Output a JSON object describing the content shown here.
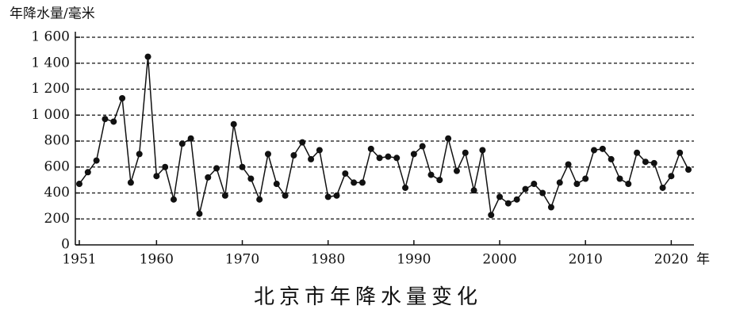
{
  "chart_data": {
    "type": "line",
    "title": "北京市年降水量变化",
    "y_label": "年降水量/毫米",
    "x_label": "年",
    "x": [
      1951,
      1952,
      1953,
      1954,
      1955,
      1956,
      1957,
      1958,
      1959,
      1960,
      1961,
      1962,
      1963,
      1964,
      1965,
      1966,
      1967,
      1968,
      1969,
      1970,
      1971,
      1972,
      1973,
      1974,
      1975,
      1976,
      1977,
      1978,
      1979,
      1980,
      1981,
      1982,
      1983,
      1984,
      1985,
      1986,
      1987,
      1988,
      1989,
      1990,
      1991,
      1992,
      1993,
      1994,
      1995,
      1996,
      1997,
      1998,
      1999,
      2000,
      2001,
      2002,
      2003,
      2004,
      2005,
      2006,
      2007,
      2008,
      2009,
      2010,
      2011,
      2012,
      2013,
      2014,
      2015,
      2016,
      2017,
      2018,
      2019,
      2020,
      2021,
      2022
    ],
    "values": [
      470,
      560,
      650,
      970,
      950,
      1130,
      480,
      700,
      1450,
      530,
      600,
      350,
      780,
      820,
      240,
      520,
      590,
      380,
      930,
      600,
      510,
      350,
      700,
      470,
      380,
      690,
      790,
      660,
      730,
      370,
      380,
      550,
      480,
      480,
      740,
      670,
      680,
      670,
      440,
      700,
      760,
      540,
      500,
      820,
      570,
      710,
      420,
      730,
      230,
      370,
      320,
      350,
      430,
      470,
      400,
      290,
      480,
      620,
      470,
      510,
      730,
      740,
      660,
      510,
      470,
      710,
      640,
      630,
      440,
      530,
      710,
      580
    ],
    "color": "#111111",
    "xlim": [
      1951,
      2022
    ],
    "xticks": [
      1951,
      1960,
      1970,
      1980,
      1990,
      2000,
      2010,
      2020
    ],
    "ylim": [
      0,
      1600
    ],
    "yticks": [
      0,
      200,
      400,
      600,
      800,
      {
        "value": 1000,
        "label": "1 000"
      },
      {
        "value": 1200,
        "label": "1 200"
      },
      {
        "value": 1400,
        "label": "1 400"
      },
      {
        "value": 1600,
        "label": "1 600"
      }
    ],
    "grid": true
  }
}
